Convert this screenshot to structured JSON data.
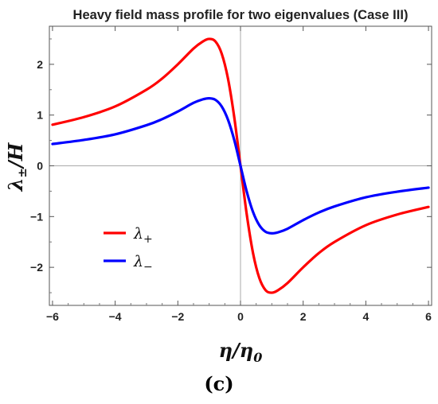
{
  "chart_data": {
    "type": "line",
    "title": "Heavy field mass profile for two eigenvalues (Case III)",
    "xlabel": "η/η₀",
    "ylabel": "λ±/H",
    "xlim": [
      -6.1,
      6.1
    ],
    "ylim": [
      -2.75,
      2.75
    ],
    "x_ticks": [
      -6,
      -4,
      -2,
      0,
      2,
      4,
      6
    ],
    "y_ticks": [
      -2,
      -1,
      0,
      1,
      2
    ],
    "grid": false,
    "legend_position": "lower-left",
    "panel_label": "(c)",
    "series": [
      {
        "name": "λ₊",
        "color": "#ff0000",
        "x": [
          -6,
          -5,
          -4,
          -3,
          -2.5,
          -2,
          -1.5,
          -1.2,
          -1,
          -0.8,
          -0.6,
          -0.4,
          -0.2,
          0,
          0.2,
          0.4,
          0.6,
          0.8,
          1,
          1.2,
          1.5,
          2,
          2.5,
          3,
          4,
          5,
          6
        ],
        "y": [
          0.81,
          0.96,
          1.17,
          1.5,
          1.72,
          2.0,
          2.31,
          2.45,
          2.5,
          2.45,
          2.21,
          1.72,
          0.96,
          0,
          -0.96,
          -1.72,
          -2.21,
          -2.45,
          -2.5,
          -2.45,
          -2.31,
          -2.0,
          -1.72,
          -1.5,
          -1.17,
          -0.96,
          -0.81
        ]
      },
      {
        "name": "λ₋",
        "color": "#0000ff",
        "x": [
          -6,
          -5,
          -4,
          -3,
          -2.5,
          -2,
          -1.5,
          -1.2,
          -1,
          -0.8,
          -0.6,
          -0.4,
          -0.2,
          0,
          0.2,
          0.4,
          0.6,
          0.8,
          1,
          1.2,
          1.5,
          2,
          2.5,
          3,
          4,
          5,
          6
        ],
        "y": [
          0.43,
          0.51,
          0.62,
          0.8,
          0.92,
          1.07,
          1.24,
          1.31,
          1.33,
          1.3,
          1.17,
          0.91,
          0.51,
          0,
          -0.51,
          -0.91,
          -1.17,
          -1.3,
          -1.33,
          -1.31,
          -1.24,
          -1.07,
          -0.92,
          -0.8,
          -0.62,
          -0.51,
          -0.43
        ]
      }
    ],
    "legend": [
      {
        "label_main": "λ",
        "label_sub": "+",
        "color": "#ff0000"
      },
      {
        "label_main": "λ",
        "label_sub": "−",
        "color": "#0000ff"
      }
    ],
    "ylabel_parts": {
      "main": "λ",
      "sub": "±",
      "rest": "/H"
    },
    "xlabel_parts": {
      "main": "η/η",
      "sub": "0"
    }
  }
}
